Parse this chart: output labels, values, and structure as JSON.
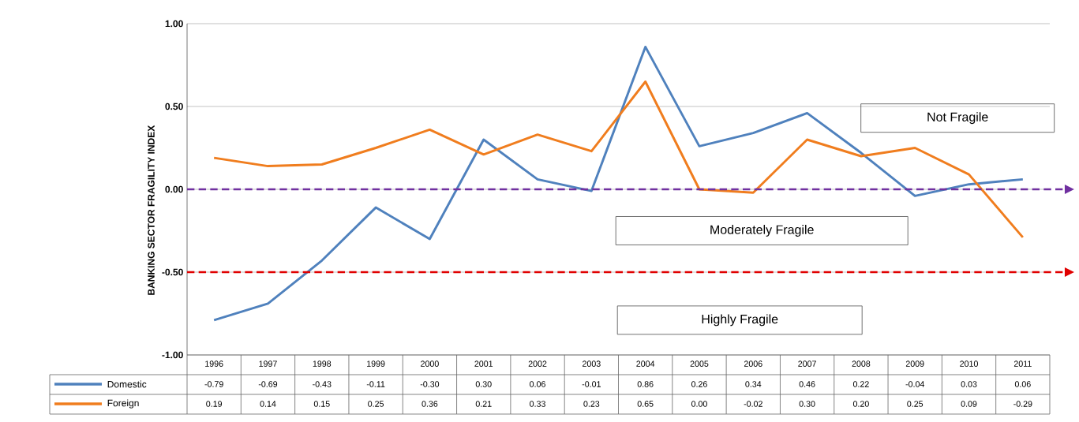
{
  "chart_data": {
    "type": "line",
    "ylabel": "BANKING SECTOR  FRAGILITY INDEX",
    "categories": [
      "1996",
      "1997",
      "1998",
      "1999",
      "2000",
      "2001",
      "2002",
      "2003",
      "2004",
      "2005",
      "2006",
      "2007",
      "2008",
      "2009",
      "2010",
      "2011"
    ],
    "series": [
      {
        "name": "Domestic",
        "color": "#4f81bd",
        "values": [
          -0.79,
          -0.69,
          -0.43,
          -0.11,
          -0.3,
          0.3,
          0.06,
          -0.01,
          0.86,
          0.26,
          0.34,
          0.46,
          0.22,
          -0.04,
          0.03,
          0.06
        ],
        "value_labels": [
          "-0.79",
          "-0.69",
          "-0.43",
          "-0.11",
          "-0.30",
          "0.30",
          "0.06",
          "-0.01",
          "0.86",
          "0.26",
          "0.34",
          "0.46",
          "0.22",
          "-0.04",
          "0.03",
          "0.06"
        ]
      },
      {
        "name": "Foreign",
        "color": "#f07d1e",
        "values": [
          0.19,
          0.14,
          0.15,
          0.25,
          0.36,
          0.21,
          0.33,
          0.23,
          0.65,
          0.0,
          -0.02,
          0.3,
          0.2,
          0.25,
          0.09,
          -0.29
        ],
        "value_labels": [
          "0.19",
          "0.14",
          "0.15",
          "0.25",
          "0.36",
          "0.21",
          "0.33",
          "0.23",
          "0.65",
          "0.00",
          "-0.02",
          "0.30",
          "0.20",
          "0.25",
          "0.09",
          "-0.29"
        ]
      }
    ],
    "ylim": [
      -1,
      1
    ],
    "yticks": [
      {
        "value": -1,
        "label": "-1.00"
      },
      {
        "value": -0.5,
        "label": "-0.50"
      },
      {
        "value": 0,
        "label": "0.00"
      },
      {
        "value": 0.5,
        "label": "0.50"
      },
      {
        "value": 1,
        "label": "1.00"
      }
    ],
    "ref_lines": [
      {
        "axis": "y",
        "value": 0,
        "color": "#7030a0",
        "line_style": "dashed"
      },
      {
        "axis": "y",
        "value": -0.5,
        "color": "#e00000",
        "line_style": "dashed"
      }
    ],
    "annotations": [
      "Not Fragile",
      "Moderately  Fragile",
      "Highly Fragile"
    ],
    "grid": "y",
    "legend": "bottom left",
    "marker": "none",
    "line_style": "solid"
  }
}
